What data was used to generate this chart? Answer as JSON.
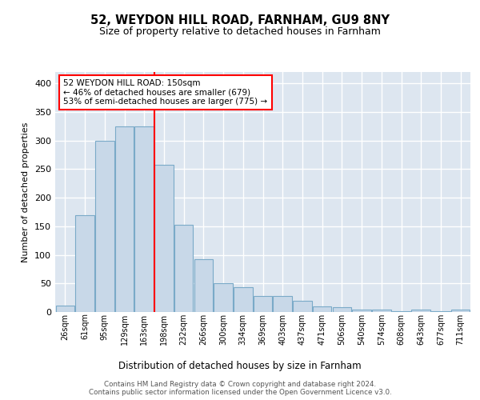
{
  "title1": "52, WEYDON HILL ROAD, FARNHAM, GU9 8NY",
  "title2": "Size of property relative to detached houses in Farnham",
  "xlabel": "Distribution of detached houses by size in Farnham",
  "ylabel": "Number of detached properties",
  "bar_labels": [
    "26sqm",
    "61sqm",
    "95sqm",
    "129sqm",
    "163sqm",
    "198sqm",
    "232sqm",
    "266sqm",
    "300sqm",
    "334sqm",
    "369sqm",
    "403sqm",
    "437sqm",
    "471sqm",
    "506sqm",
    "540sqm",
    "574sqm",
    "608sqm",
    "643sqm",
    "677sqm",
    "711sqm"
  ],
  "bar_values": [
    11,
    170,
    300,
    325,
    325,
    258,
    153,
    93,
    50,
    43,
    28,
    28,
    20,
    10,
    9,
    4,
    4,
    1,
    4,
    1,
    4
  ],
  "bar_color": "#c8d8e8",
  "bar_edgecolor": "#7aaac8",
  "background_color": "#dde6f0",
  "grid_color": "#ffffff",
  "vline_x": 4.5,
  "vline_color": "red",
  "annotation_text": "52 WEYDON HILL ROAD: 150sqm\n← 46% of detached houses are smaller (679)\n53% of semi-detached houses are larger (775) →",
  "annotation_box_edgecolor": "red",
  "annotation_box_facecolor": "white",
  "footer_text": "Contains HM Land Registry data © Crown copyright and database right 2024.\nContains public sector information licensed under the Open Government Licence v3.0.",
  "ylim": [
    0,
    420
  ],
  "yticks": [
    0,
    50,
    100,
    150,
    200,
    250,
    300,
    350,
    400
  ]
}
